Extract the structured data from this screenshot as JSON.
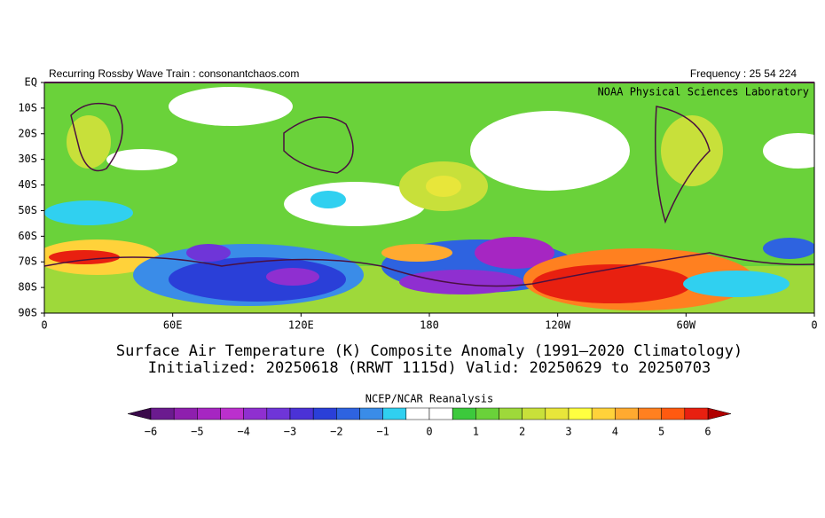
{
  "header": {
    "left": "Recurring Rossby Wave Train : consonantchaos.com",
    "right": "Frequency : 25 54 224",
    "lab": "NOAA Physical Sciences Laboratory"
  },
  "map": {
    "lat_labels": [
      "EQ",
      "10S",
      "20S",
      "30S",
      "40S",
      "50S",
      "60S",
      "70S",
      "80S",
      "90S"
    ],
    "lon_labels": [
      "0",
      "60E",
      "120E",
      "180",
      "120W",
      "60W",
      "0"
    ]
  },
  "title": {
    "line1": "Surface Air Temperature (K) Composite Anomaly (1991–2020 Climatology)",
    "line2": "Initialized: 20250618 (RRWT 1115d) Valid: 20250629 to 20250703"
  },
  "colorbar": {
    "source": "NCEP/NCAR Reanalysis",
    "labels": [
      "−6",
      "−5",
      "−4",
      "−3",
      "−2",
      "−1",
      "0",
      "1",
      "2",
      "3",
      "4",
      "5",
      "6"
    ],
    "low_color": "#3a0a4a",
    "high_color": "#b00000",
    "colors": [
      "#6b1b8f",
      "#8e1fae",
      "#a626c2",
      "#bb30cd",
      "#8f2fd0",
      "#6f35d8",
      "#4b32d6",
      "#2a3fd8",
      "#2e63e0",
      "#3a8ce8",
      "#30d0f0",
      "#ffffff",
      "#ffffff",
      "#3cc93c",
      "#6ad23a",
      "#9ed93a",
      "#c8e03a",
      "#e8e63a",
      "#ffff40",
      "#ffd23a",
      "#ffaa30",
      "#ff8020",
      "#ff5a10",
      "#e82010"
    ]
  }
}
